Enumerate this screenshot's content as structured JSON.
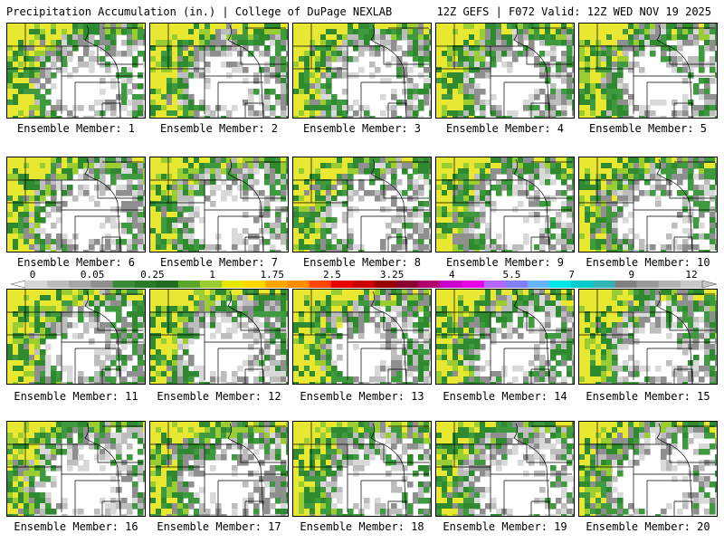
{
  "header": {
    "title_left": "Precipitation Accumulation (in.) | College of DuPage NEXLAB",
    "title_right": "12Z GEFS | F072 Valid: 12Z WED NOV 19 2025"
  },
  "member_label_prefix": "Ensemble Member: ",
  "members": [
    {
      "label": "Ensemble Member: 1",
      "seed": 11,
      "wet": 0.55
    },
    {
      "label": "Ensemble Member: 2",
      "seed": 23,
      "wet": 0.6
    },
    {
      "label": "Ensemble Member: 3",
      "seed": 37,
      "wet": 0.58
    },
    {
      "label": "Ensemble Member: 4",
      "seed": 41,
      "wet": 0.57
    },
    {
      "label": "Ensemble Member: 5",
      "seed": 53,
      "wet": 0.56
    },
    {
      "label": "Ensemble Member: 6",
      "seed": 67,
      "wet": 0.55
    },
    {
      "label": "Ensemble Member: 7",
      "seed": 71,
      "wet": 0.54
    },
    {
      "label": "Ensemble Member: 8",
      "seed": 83,
      "wet": 0.56
    },
    {
      "label": "Ensemble Member: 9",
      "seed": 97,
      "wet": 0.57
    },
    {
      "label": "Ensemble Member: 10",
      "seed": 101,
      "wet": 0.55
    },
    {
      "label": "Ensemble Member: 11",
      "seed": 113,
      "wet": 0.6
    },
    {
      "label": "Ensemble Member: 12",
      "seed": 127,
      "wet": 0.58
    },
    {
      "label": "Ensemble Member: 13",
      "seed": 131,
      "wet": 0.6
    },
    {
      "label": "Ensemble Member: 14",
      "seed": 149,
      "wet": 0.59
    },
    {
      "label": "Ensemble Member: 15",
      "seed": 151,
      "wet": 0.6
    },
    {
      "label": "Ensemble Member: 16",
      "seed": 163,
      "wet": 0.5
    },
    {
      "label": "Ensemble Member: 17",
      "seed": 173,
      "wet": 0.55
    },
    {
      "label": "Ensemble Member: 18",
      "seed": 181,
      "wet": 0.58
    },
    {
      "label": "Ensemble Member: 19",
      "seed": 191,
      "wet": 0.52
    },
    {
      "label": "Ensemble Member: 20",
      "seed": 197,
      "wet": 0.5
    }
  ],
  "colorbar": {
    "tick_labels": [
      "0",
      "0.05",
      "0.25",
      "1",
      "1.75",
      "2.5",
      "3.25",
      "4",
      "5.5",
      "7",
      "9",
      "12"
    ],
    "colors": [
      "#d6d6d6",
      "#bdbdbd",
      "#a6a6a6",
      "#8f8f8f",
      "#3a8a3a",
      "#2a7a2a",
      "#1f6b1f",
      "#5aa62a",
      "#9acd32",
      "#e6e600",
      "#ffd700",
      "#ffa500",
      "#ff8c00",
      "#ff4500",
      "#e60000",
      "#cc0000",
      "#990000",
      "#8b0033",
      "#b0006e",
      "#cc00cc",
      "#e600e6",
      "#b266ff",
      "#8080ff",
      "#66b3ff",
      "#00e6e6",
      "#00cccc",
      "#33b3b3",
      "#808080",
      "#999999",
      "#b3b3b3",
      "#c8c8c8"
    ]
  }
}
